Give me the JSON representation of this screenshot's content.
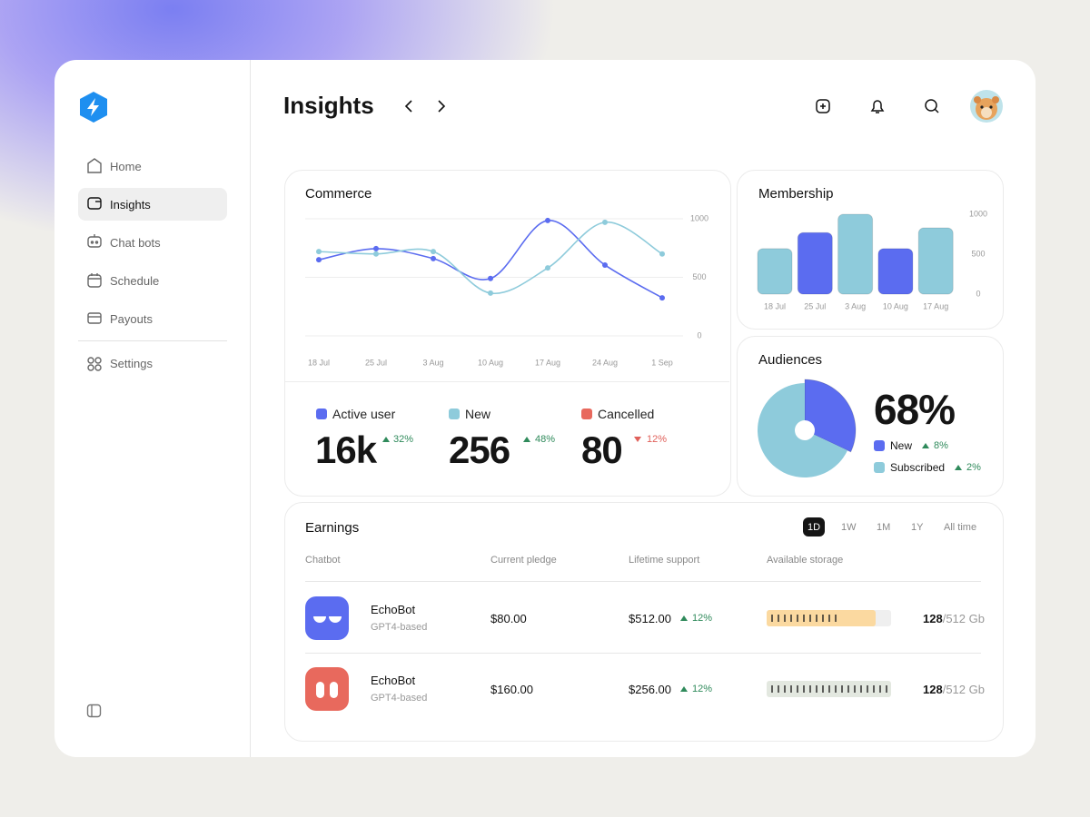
{
  "sidebar": {
    "nav": [
      "Home",
      "Insights",
      "Chat bots",
      "Schedule",
      "Payouts"
    ],
    "settings": "Settings"
  },
  "header": {
    "title": "Insights"
  },
  "chart_data": [
    {
      "type": "line",
      "title": "Commerce",
      "categories": [
        "18 Jul",
        "25 Jul",
        "3 Aug",
        "10 Aug",
        "17 Aug",
        "24 Aug",
        "1 Sep"
      ],
      "series": [
        {
          "color": "#5b6cf0",
          "values": [
            650,
            745,
            660,
            490,
            985,
            605,
            325
          ]
        },
        {
          "color": "#8ecbdb",
          "values": [
            720,
            700,
            720,
            365,
            580,
            970,
            700
          ]
        }
      ],
      "ylim": [
        0,
        1000
      ],
      "yticks": [
        0,
        500,
        1000
      ],
      "grid": true
    },
    {
      "type": "bar",
      "title": "Membership",
      "categories": [
        "18 Jul",
        "25 Jul",
        "3 Aug",
        "10 Aug",
        "17 Aug"
      ],
      "values": [
        570,
        770,
        1000,
        570,
        830
      ],
      "colors": [
        "#8ecbdb",
        "#5b6cf0",
        "#8ecbdb",
        "#5b6cf0",
        "#8ecbdb"
      ],
      "ylim": [
        0,
        1000
      ],
      "yticks": [
        0,
        500,
        1000
      ]
    },
    {
      "type": "pie",
      "title": "Audiences",
      "headline": "68%",
      "categories": [
        "New",
        "Subscribed"
      ],
      "values": [
        32,
        68
      ],
      "colors": [
        "#5b6cf0",
        "#8ecbdb"
      ],
      "changes": [
        "8%",
        "2%"
      ]
    }
  ],
  "stats": [
    {
      "label": "Active user",
      "value": "16k",
      "change": "32%"
    },
    {
      "label": "New",
      "value": "256",
      "change": "48%"
    },
    {
      "label": "Cancelled",
      "value": "80",
      "change": "12%"
    }
  ],
  "earnings": {
    "title": "Earnings",
    "periods": [
      "1D",
      "1W",
      "1M",
      "1Y",
      "All time"
    ],
    "columns": [
      "Chatbot",
      "Current pledge",
      "Lifetime support",
      "Available storage"
    ],
    "rows": [
      {
        "name": "EchoBot",
        "model": "GPT4-based",
        "pledge": "$80.00",
        "lifetime": "$512.00",
        "change": "12%",
        "used": "128",
        "total": "/512 Gb"
      },
      {
        "name": "EchoBot",
        "model": "GPT4-based",
        "pledge": "$160.00",
        "lifetime": "$256.00",
        "change": "12%",
        "used": "128",
        "total": "/512 Gb"
      }
    ]
  }
}
